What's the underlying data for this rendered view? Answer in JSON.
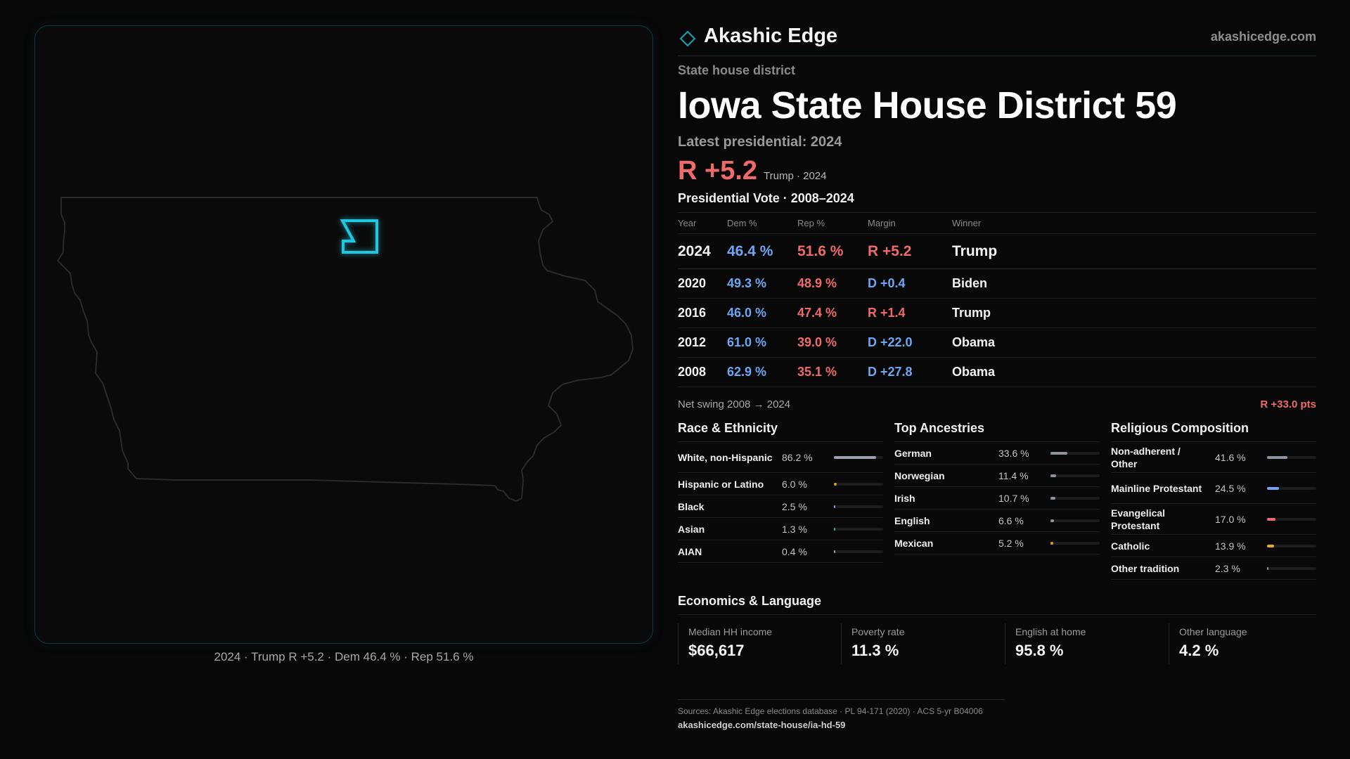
{
  "brand": {
    "name": "Akashic Edge",
    "url": "akashicedge.com",
    "accent": "#1aa3b5"
  },
  "district": {
    "kind": "State house district",
    "title": "Iowa State House District 59",
    "latest_label": "Latest presidential: 2024",
    "latest_margin": "R +5.2",
    "latest_sub": "Trump · 2024"
  },
  "map": {
    "caption": "2024 · Trump R +5.2 · Dem 46.4 % · Rep 51.6 %",
    "highlight_color": "#1ec8e0"
  },
  "presidential": {
    "title": "Presidential Vote · 2008–2024",
    "headers": {
      "year": "Year",
      "dem": "Dem %",
      "rep": "Rep %",
      "margin": "Margin",
      "winner": "Winner"
    },
    "rows": [
      {
        "year": "2024",
        "dem": "46.4 %",
        "rep": "51.6 %",
        "margin": "R +5.2",
        "party": "R",
        "winner": "Trump"
      },
      {
        "year": "2020",
        "dem": "49.3 %",
        "rep": "48.9 %",
        "margin": "D +0.4",
        "party": "D",
        "winner": "Biden"
      },
      {
        "year": "2016",
        "dem": "46.0 %",
        "rep": "47.4 %",
        "margin": "R +1.4",
        "party": "R",
        "winner": "Trump"
      },
      {
        "year": "2012",
        "dem": "61.0 %",
        "rep": "39.0 %",
        "margin": "D +22.0",
        "party": "D",
        "winner": "Obama"
      },
      {
        "year": "2008",
        "dem": "62.9 %",
        "rep": "35.1 %",
        "margin": "D +27.8",
        "party": "D",
        "winner": "Obama"
      }
    ],
    "swing_label": "Net swing 2008 → 2024",
    "swing_value": "R +33.0 pts"
  },
  "race": {
    "title": "Race & Ethnicity",
    "items": [
      {
        "label": "White, non-Hispanic",
        "value": "86.2 %",
        "share": 0.862,
        "color": "#9aa3ad"
      },
      {
        "label": "Hispanic or Latino",
        "value": "6.0 %",
        "share": 0.06,
        "color": "#e0a020"
      },
      {
        "label": "Black",
        "value": "2.5 %",
        "share": 0.025,
        "color": "#6ea6f2"
      },
      {
        "label": "Asian",
        "value": "1.3 %",
        "share": 0.013,
        "color": "#35b878"
      },
      {
        "label": "AIAN",
        "value": "0.4 %",
        "share": 0.004,
        "color": "#9aa3ad"
      }
    ]
  },
  "ancestry": {
    "title": "Top Ancestries",
    "items": [
      {
        "label": "German",
        "value": "33.6 %",
        "share": 0.336,
        "color": "#8e96a0"
      },
      {
        "label": "Norwegian",
        "value": "11.4 %",
        "share": 0.114,
        "color": "#8e96a0"
      },
      {
        "label": "Irish",
        "value": "10.7 %",
        "share": 0.107,
        "color": "#8e96a0"
      },
      {
        "label": "English",
        "value": "6.6 %",
        "share": 0.066,
        "color": "#8e96a0"
      },
      {
        "label": "Mexican",
        "value": "5.2 %",
        "share": 0.052,
        "color": "#e0a020"
      }
    ]
  },
  "religion": {
    "title": "Religious Composition",
    "items": [
      {
        "label": "Non-adherent / Other",
        "value": "41.6 %",
        "share": 0.416,
        "color": "#8e96a0"
      },
      {
        "label": "Mainline Protestant",
        "value": "24.5 %",
        "share": 0.245,
        "color": "#6ea6f2"
      },
      {
        "label": "Evangelical Protestant",
        "value": "17.0 %",
        "share": 0.17,
        "color": "#ef6a6a"
      },
      {
        "label": "Catholic",
        "value": "13.9 %",
        "share": 0.139,
        "color": "#e0b020"
      },
      {
        "label": "Other tradition",
        "value": "2.3 %",
        "share": 0.023,
        "color": "#8e96a0"
      }
    ]
  },
  "economics": {
    "title": "Economics & Language",
    "items": [
      {
        "label": "Median HH income",
        "value": "$66,617"
      },
      {
        "label": "Poverty rate",
        "value": "11.3 %"
      },
      {
        "label": "English at home",
        "value": "95.8 %"
      },
      {
        "label": "Other language",
        "value": "4.2 %"
      }
    ]
  },
  "footer": {
    "sources": "Sources: Akashic Edge elections database · PL 94-171 (2020) · ACS 5-yr B04006",
    "url": "akashicedge.com/state-house/ia-hd-59"
  }
}
